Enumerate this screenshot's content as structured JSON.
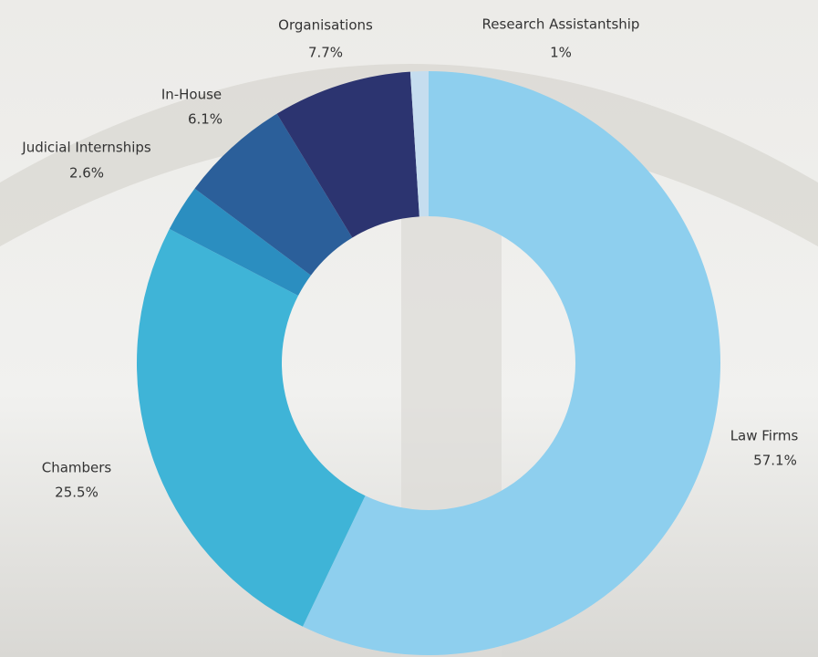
{
  "chart_data": {
    "type": "donut",
    "categories": [
      "Law Firms",
      "Chambers",
      "Judicial Internships",
      "In-House",
      "Organisations",
      "Research Assistantship"
    ],
    "values": [
      57.1,
      25.5,
      2.6,
      6.1,
      7.7,
      1
    ],
    "value_labels": [
      "57.1%",
      "25.5%",
      "2.6%",
      "6.1%",
      "7.7%",
      "1%"
    ],
    "colors": [
      "#8ecfee",
      "#3fb4d7",
      "#2b8ec0",
      "#2b5f9a",
      "#2c3470",
      "#c5ddef"
    ]
  }
}
